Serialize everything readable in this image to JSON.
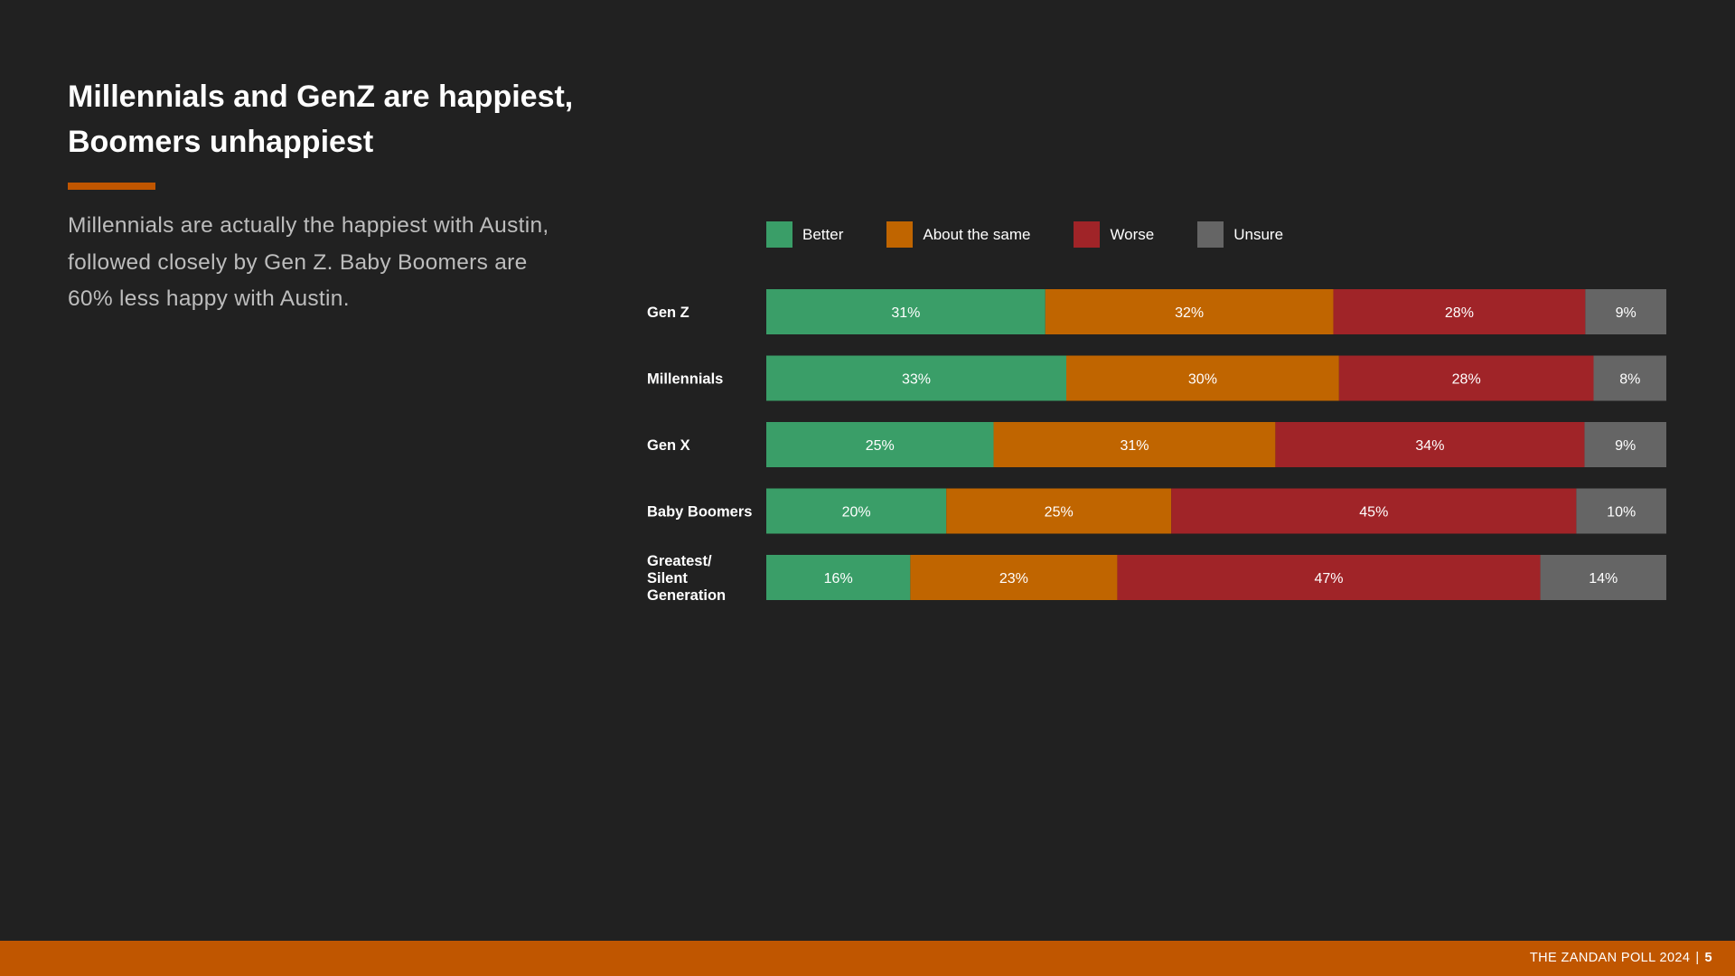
{
  "headline": "Millennials and GenZ are happiest, Boomers unhappiest",
  "body": "Millennials are actually the happiest with Austin, followed closely by Gen Z. Baby Boomers are 60% less happy with Austin.",
  "colors": {
    "accent": "#c05600",
    "background": "#212121",
    "better": "#3a9e68",
    "same": "#c06500",
    "worse": "#a02428",
    "unsure": "#656565"
  },
  "legend": [
    {
      "label": "Better",
      "color": "#3a9e68"
    },
    {
      "label": "About the same",
      "color": "#c06500"
    },
    {
      "label": "Worse",
      "color": "#a02428"
    },
    {
      "label": "Unsure",
      "color": "#656565"
    }
  ],
  "chart_data": {
    "type": "bar",
    "orientation": "horizontal",
    "stacked": true,
    "normalized": true,
    "categories": [
      [
        "Gen Z"
      ],
      [
        "Millennials"
      ],
      [
        "Gen X"
      ],
      [
        "Baby Boomers"
      ],
      [
        "Greatest/",
        "Silent",
        "Generation"
      ]
    ],
    "series": [
      {
        "name": "Better",
        "color": "#3a9e68",
        "values": [
          31,
          33,
          25,
          20,
          16
        ],
        "labels": [
          "31%",
          "33%",
          "25%",
          "20%",
          "16%"
        ]
      },
      {
        "name": "About the same",
        "color": "#c06500",
        "values": [
          32,
          30,
          31,
          25,
          23
        ],
        "labels": [
          "32%",
          "30%",
          "31%",
          "25%",
          "23%"
        ]
      },
      {
        "name": "Worse",
        "color": "#a02428",
        "values": [
          28,
          28,
          34,
          45,
          47
        ],
        "labels": [
          "28%",
          "28%",
          "34%",
          "45%",
          "47%"
        ]
      },
      {
        "name": "Unsure",
        "color": "#656565",
        "values": [
          9,
          8,
          9,
          10,
          14
        ],
        "labels": [
          "9%",
          "8%",
          "9%",
          "10%",
          "14%"
        ]
      }
    ],
    "legend_position": "top",
    "grid": false
  },
  "footer": {
    "source": "THE ZANDAN POLL 2024",
    "separator": "|",
    "page": "5"
  }
}
